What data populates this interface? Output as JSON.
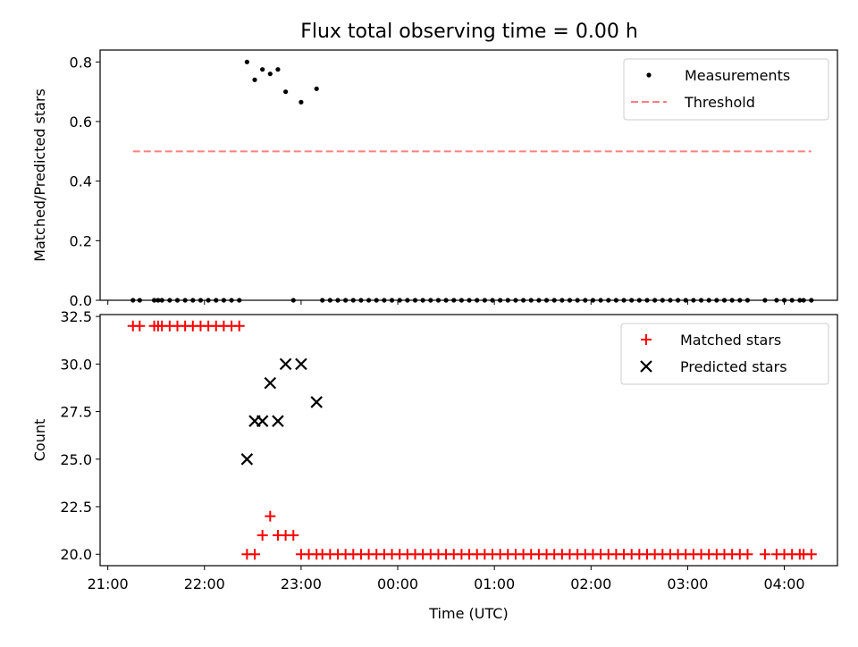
{
  "figure": {
    "title": "Flux total observing time = 0.00 h"
  },
  "chart_data": [
    {
      "type": "scatter",
      "ylabel": "Matched/Predicted stars",
      "xlabel": "",
      "x_range_hours": [
        20.92,
        28.55
      ],
      "ylim": [
        0,
        0.84
      ],
      "yticks": [
        "0.0",
        "0.2",
        "0.4",
        "0.6",
        "0.8"
      ],
      "legend_position": "top-right",
      "series": [
        {
          "name": "Measurements",
          "marker": "dot",
          "color": "#000000",
          "points": [
            [
              21.26,
              0
            ],
            [
              21.33,
              0
            ],
            [
              21.48,
              0
            ],
            [
              21.52,
              0
            ],
            [
              21.56,
              0
            ],
            [
              21.64,
              0
            ],
            [
              21.72,
              0
            ],
            [
              21.8,
              0
            ],
            [
              21.88,
              0
            ],
            [
              21.96,
              0
            ],
            [
              22.04,
              0
            ],
            [
              22.12,
              0
            ],
            [
              22.2,
              0
            ],
            [
              22.28,
              0
            ],
            [
              22.36,
              0
            ],
            [
              22.44,
              0.8
            ],
            [
              22.52,
              0.74
            ],
            [
              22.6,
              0.775
            ],
            [
              22.68,
              0.76
            ],
            [
              22.76,
              0.775
            ],
            [
              22.84,
              0.7
            ],
            [
              23.0,
              0.665
            ],
            [
              23.16,
              0.71
            ],
            [
              22.92,
              0
            ],
            [
              23.22,
              0
            ],
            [
              23.3,
              0
            ],
            [
              23.38,
              0
            ],
            [
              23.46,
              0
            ],
            [
              23.54,
              0
            ],
            [
              23.62,
              0
            ],
            [
              23.7,
              0
            ],
            [
              23.78,
              0
            ],
            [
              23.86,
              0
            ],
            [
              23.94,
              0
            ],
            [
              24.02,
              0
            ],
            [
              24.1,
              0
            ],
            [
              24.18,
              0
            ],
            [
              24.26,
              0
            ],
            [
              24.34,
              0
            ],
            [
              24.42,
              0
            ],
            [
              24.5,
              0
            ],
            [
              24.58,
              0
            ],
            [
              24.66,
              0
            ],
            [
              24.74,
              0
            ],
            [
              24.82,
              0
            ],
            [
              24.9,
              0
            ],
            [
              24.98,
              0
            ],
            [
              25.06,
              0
            ],
            [
              25.14,
              0
            ],
            [
              25.22,
              0
            ],
            [
              25.3,
              0
            ],
            [
              25.38,
              0
            ],
            [
              25.46,
              0
            ],
            [
              25.54,
              0
            ],
            [
              25.62,
              0
            ],
            [
              25.7,
              0
            ],
            [
              25.78,
              0
            ],
            [
              25.86,
              0
            ],
            [
              25.94,
              0
            ],
            [
              26.02,
              0
            ],
            [
              26.1,
              0
            ],
            [
              26.18,
              0
            ],
            [
              26.26,
              0
            ],
            [
              26.34,
              0
            ],
            [
              26.42,
              0
            ],
            [
              26.5,
              0
            ],
            [
              26.58,
              0
            ],
            [
              26.66,
              0
            ],
            [
              26.74,
              0
            ],
            [
              26.82,
              0
            ],
            [
              26.9,
              0
            ],
            [
              26.98,
              0
            ],
            [
              27.06,
              0
            ],
            [
              27.14,
              0
            ],
            [
              27.22,
              0
            ],
            [
              27.3,
              0
            ],
            [
              27.38,
              0
            ],
            [
              27.46,
              0
            ],
            [
              27.54,
              0
            ],
            [
              27.62,
              0
            ],
            [
              27.8,
              0
            ],
            [
              27.92,
              0
            ],
            [
              28.0,
              0
            ],
            [
              28.08,
              0
            ],
            [
              28.16,
              0
            ],
            [
              28.2,
              0
            ],
            [
              28.28,
              0
            ]
          ]
        },
        {
          "name": "Threshold",
          "marker": "dashed-line",
          "color": "#ff7f7f",
          "points": [
            [
              21.26,
              0.5
            ],
            [
              28.28,
              0.5
            ]
          ]
        }
      ]
    },
    {
      "type": "scatter",
      "ylabel": "Count",
      "xlabel": "Time (UTC)",
      "x_range_hours": [
        20.92,
        28.55
      ],
      "ylim": [
        19.4,
        32.6
      ],
      "yticks": [
        "20.0",
        "22.5",
        "25.0",
        "27.5",
        "30.0",
        "32.5"
      ],
      "xticks": [
        {
          "h": 21,
          "label": "21:00"
        },
        {
          "h": 22,
          "label": "22:00"
        },
        {
          "h": 23,
          "label": "23:00"
        },
        {
          "h": 24,
          "label": "00:00"
        },
        {
          "h": 25,
          "label": "01:00"
        },
        {
          "h": 26,
          "label": "02:00"
        },
        {
          "h": 27,
          "label": "03:00"
        },
        {
          "h": 28,
          "label": "04:00"
        }
      ],
      "legend_position": "top-right",
      "series": [
        {
          "name": "Matched stars",
          "marker": "plus",
          "color": "#ff0000",
          "points": [
            [
              21.26,
              32
            ],
            [
              21.33,
              32
            ],
            [
              21.48,
              32
            ],
            [
              21.52,
              32
            ],
            [
              21.56,
              32
            ],
            [
              21.64,
              32
            ],
            [
              21.72,
              32
            ],
            [
              21.8,
              32
            ],
            [
              21.88,
              32
            ],
            [
              21.96,
              32
            ],
            [
              22.04,
              32
            ],
            [
              22.12,
              32
            ],
            [
              22.2,
              32
            ],
            [
              22.28,
              32
            ],
            [
              22.36,
              32
            ],
            [
              22.44,
              20
            ],
            [
              22.52,
              20
            ],
            [
              22.6,
              21
            ],
            [
              22.68,
              22
            ],
            [
              22.76,
              21
            ],
            [
              22.84,
              21
            ],
            [
              22.92,
              21
            ],
            [
              23.0,
              20
            ],
            [
              23.08,
              20
            ],
            [
              23.16,
              20
            ],
            [
              23.22,
              20
            ],
            [
              23.3,
              20
            ],
            [
              23.38,
              20
            ],
            [
              23.46,
              20
            ],
            [
              23.54,
              20
            ],
            [
              23.62,
              20
            ],
            [
              23.7,
              20
            ],
            [
              23.78,
              20
            ],
            [
              23.86,
              20
            ],
            [
              23.94,
              20
            ],
            [
              24.02,
              20
            ],
            [
              24.1,
              20
            ],
            [
              24.18,
              20
            ],
            [
              24.26,
              20
            ],
            [
              24.34,
              20
            ],
            [
              24.42,
              20
            ],
            [
              24.5,
              20
            ],
            [
              24.58,
              20
            ],
            [
              24.66,
              20
            ],
            [
              24.74,
              20
            ],
            [
              24.82,
              20
            ],
            [
              24.9,
              20
            ],
            [
              24.98,
              20
            ],
            [
              25.06,
              20
            ],
            [
              25.14,
              20
            ],
            [
              25.22,
              20
            ],
            [
              25.3,
              20
            ],
            [
              25.38,
              20
            ],
            [
              25.46,
              20
            ],
            [
              25.54,
              20
            ],
            [
              25.62,
              20
            ],
            [
              25.7,
              20
            ],
            [
              25.78,
              20
            ],
            [
              25.86,
              20
            ],
            [
              25.94,
              20
            ],
            [
              26.02,
              20
            ],
            [
              26.1,
              20
            ],
            [
              26.18,
              20
            ],
            [
              26.26,
              20
            ],
            [
              26.34,
              20
            ],
            [
              26.42,
              20
            ],
            [
              26.5,
              20
            ],
            [
              26.58,
              20
            ],
            [
              26.66,
              20
            ],
            [
              26.74,
              20
            ],
            [
              26.82,
              20
            ],
            [
              26.9,
              20
            ],
            [
              26.98,
              20
            ],
            [
              27.06,
              20
            ],
            [
              27.14,
              20
            ],
            [
              27.22,
              20
            ],
            [
              27.3,
              20
            ],
            [
              27.38,
              20
            ],
            [
              27.46,
              20
            ],
            [
              27.54,
              20
            ],
            [
              27.62,
              20
            ],
            [
              27.8,
              20
            ],
            [
              27.92,
              20
            ],
            [
              28.0,
              20
            ],
            [
              28.08,
              20
            ],
            [
              28.16,
              20
            ],
            [
              28.2,
              20
            ],
            [
              28.28,
              20
            ]
          ]
        },
        {
          "name": "Predicted stars",
          "marker": "x",
          "color": "#000000",
          "points": [
            [
              22.44,
              25
            ],
            [
              22.52,
              27
            ],
            [
              22.6,
              27
            ],
            [
              22.68,
              29
            ],
            [
              22.76,
              27
            ],
            [
              22.84,
              30
            ],
            [
              23.0,
              30
            ],
            [
              23.16,
              28
            ]
          ]
        }
      ]
    }
  ]
}
